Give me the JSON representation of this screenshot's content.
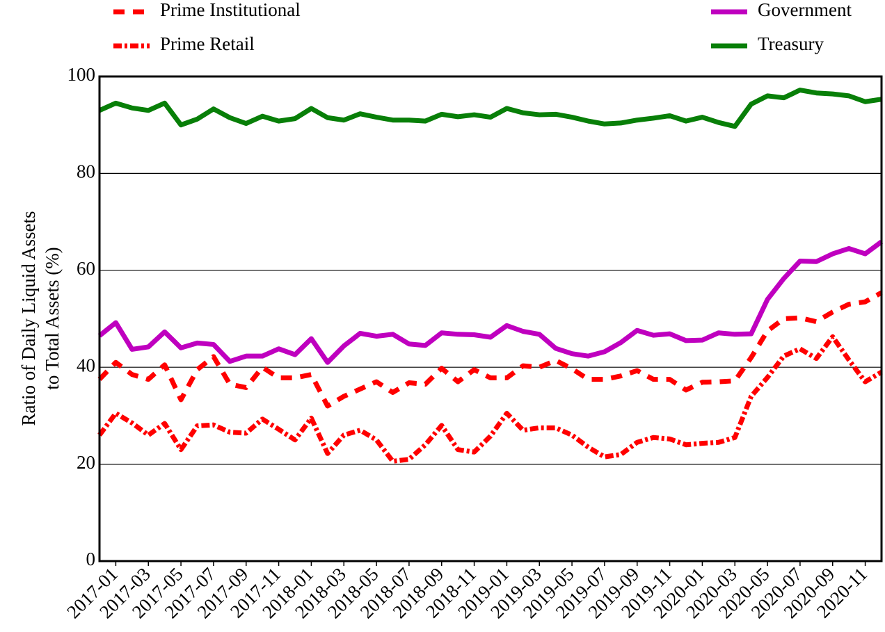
{
  "chart_data": {
    "type": "line",
    "ylabel": [
      "Ratio of Daily Liquid Assets",
      "to Total Assets (%)"
    ],
    "x": [
      "2016-12",
      "2017-01",
      "2017-02",
      "2017-03",
      "2017-04",
      "2017-05",
      "2017-06",
      "2017-07",
      "2017-08",
      "2017-09",
      "2017-10",
      "2017-11",
      "2017-12",
      "2018-01",
      "2018-02",
      "2018-03",
      "2018-04",
      "2018-05",
      "2018-06",
      "2018-07",
      "2018-08",
      "2018-09",
      "2018-10",
      "2018-11",
      "2018-12",
      "2019-01",
      "2019-02",
      "2019-03",
      "2019-04",
      "2019-05",
      "2019-06",
      "2019-07",
      "2019-08",
      "2019-09",
      "2019-10",
      "2019-11",
      "2019-12",
      "2020-01",
      "2020-02",
      "2020-03",
      "2020-04",
      "2020-05",
      "2020-06",
      "2020-07",
      "2020-08",
      "2020-09",
      "2020-10",
      "2020-11",
      "2020-12"
    ],
    "xlim": [
      "2016-12",
      "2020-12"
    ],
    "xticks": [
      "2017-01",
      "2017-03",
      "2017-05",
      "2017-07",
      "2017-09",
      "2017-11",
      "2018-01",
      "2018-03",
      "2018-05",
      "2018-07",
      "2018-09",
      "2018-11",
      "2019-01",
      "2019-03",
      "2019-05",
      "2019-07",
      "2019-09",
      "2019-11",
      "2020-01",
      "2020-03",
      "2020-05",
      "2020-07",
      "2020-09",
      "2020-11"
    ],
    "ylim": [
      0,
      100
    ],
    "yticks": [
      0,
      20,
      40,
      60,
      80,
      100
    ],
    "grid": true,
    "series": [
      {
        "name": "Prime Institutional",
        "color": "#ff0000",
        "style": "dashed",
        "values": [
          37.5,
          41,
          38.5,
          37.5,
          40.5,
          33.3,
          39.5,
          42.2,
          36.5,
          35.8,
          40,
          37.8,
          37.8,
          38.5,
          32,
          34,
          35.5,
          37,
          34.8,
          36.8,
          36.5,
          39.8,
          37,
          39.5,
          37.8,
          37.8,
          40.3,
          40,
          41.4,
          39.7,
          37.5,
          37.5,
          38.2,
          39.3,
          37.5,
          37.5,
          35.3,
          36.9,
          37,
          37.2,
          42,
          47.5,
          50,
          50.2,
          49.4,
          51.4,
          53,
          53.5,
          55.4
        ]
      },
      {
        "name": "Prime Retail",
        "color": "#ff0000",
        "style": "dashdot",
        "values": [
          26,
          30.5,
          28.5,
          26,
          28.4,
          23,
          27.9,
          28.1,
          26.6,
          26.4,
          29.3,
          27.2,
          25,
          29.5,
          22.2,
          26,
          27,
          25,
          20.6,
          21,
          24,
          28,
          23,
          22.5,
          25.8,
          30.5,
          27,
          27.5,
          27.5,
          26,
          23.5,
          21.5,
          22,
          24.5,
          25.5,
          25.2,
          24,
          24.3,
          24.5,
          25.5,
          34,
          37.9,
          42.3,
          43.8,
          41.8,
          46.3,
          41.5,
          37,
          39
        ]
      },
      {
        "name": "Government",
        "color": "#bf00bf",
        "style": "solid",
        "values": [
          46.5,
          49.2,
          43.7,
          44.2,
          47.3,
          44,
          45,
          44.7,
          41.2,
          42.3,
          42.3,
          43.8,
          42.6,
          45.9,
          41,
          44.4,
          47,
          46.4,
          46.8,
          44.8,
          44.5,
          47.1,
          46.8,
          46.7,
          46.2,
          48.6,
          47.4,
          46.8,
          43.9,
          42.8,
          42.3,
          43.2,
          45.1,
          47.6,
          46.6,
          46.9,
          45.5,
          45.6,
          47.1,
          46.8,
          46.9,
          54,
          58.3,
          61.9,
          61.8,
          63.4,
          64.5,
          63.4,
          65.9
        ]
      },
      {
        "name": "Treasury",
        "color": "#087f08",
        "style": "solid",
        "values": [
          93,
          94.5,
          93.5,
          93,
          94.5,
          90,
          91.2,
          93.3,
          91.5,
          90.3,
          91.8,
          90.8,
          91.3,
          93.4,
          91.5,
          91,
          92.3,
          91.6,
          91,
          91,
          90.8,
          92.2,
          91.7,
          92.1,
          91.6,
          93.4,
          92.5,
          92.1,
          92.2,
          91.6,
          90.8,
          90.2,
          90.4,
          91,
          91.4,
          91.9,
          90.8,
          91.6,
          90.5,
          89.7,
          94.3,
          96,
          95.6,
          97.2,
          96.6,
          96.4,
          96,
          94.8,
          95.3
        ]
      }
    ]
  }
}
